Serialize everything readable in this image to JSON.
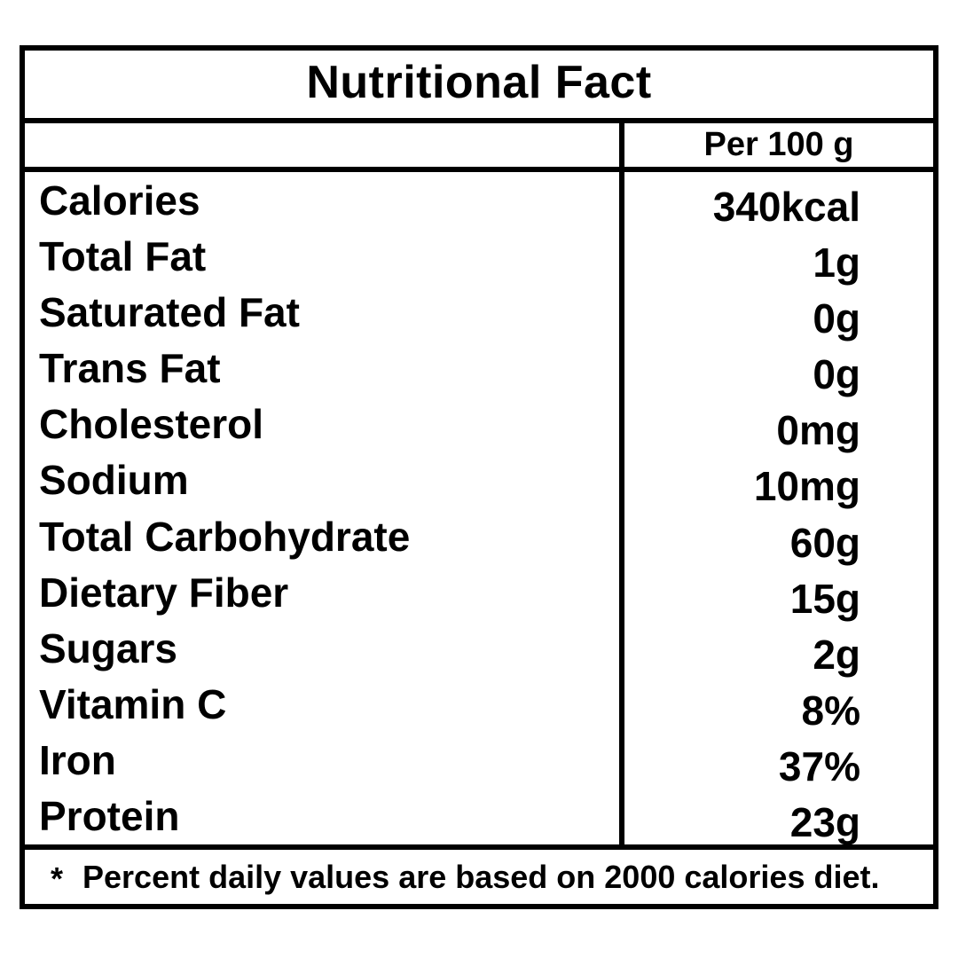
{
  "label": {
    "title": "Nutritional Fact",
    "column_header": "Per 100 g",
    "rows": [
      {
        "name": "Calories",
        "value": "340kcal"
      },
      {
        "name": "Total Fat",
        "value": "1g"
      },
      {
        "name": "Saturated Fat",
        "value": "0g"
      },
      {
        "name": "Trans Fat",
        "value": "0g"
      },
      {
        "name": "Cholesterol",
        "value": "0mg"
      },
      {
        "name": "Sodium",
        "value": "10mg"
      },
      {
        "name": "Total Carbohydrate",
        "value": "60g"
      },
      {
        "name": "Dietary Fiber",
        "value": "15g"
      },
      {
        "name": "Sugars",
        "value": "2g"
      },
      {
        "name": "Vitamin C",
        "value": "8%"
      },
      {
        "name": "Iron",
        "value": "37%"
      },
      {
        "name": "Protein",
        "value": "23g"
      }
    ],
    "footnote_marker": "*",
    "footnote": "Percent daily values are based on 2000 calories diet.",
    "colors": {
      "border": "#000000",
      "text": "#000000",
      "background": "#ffffff"
    }
  }
}
